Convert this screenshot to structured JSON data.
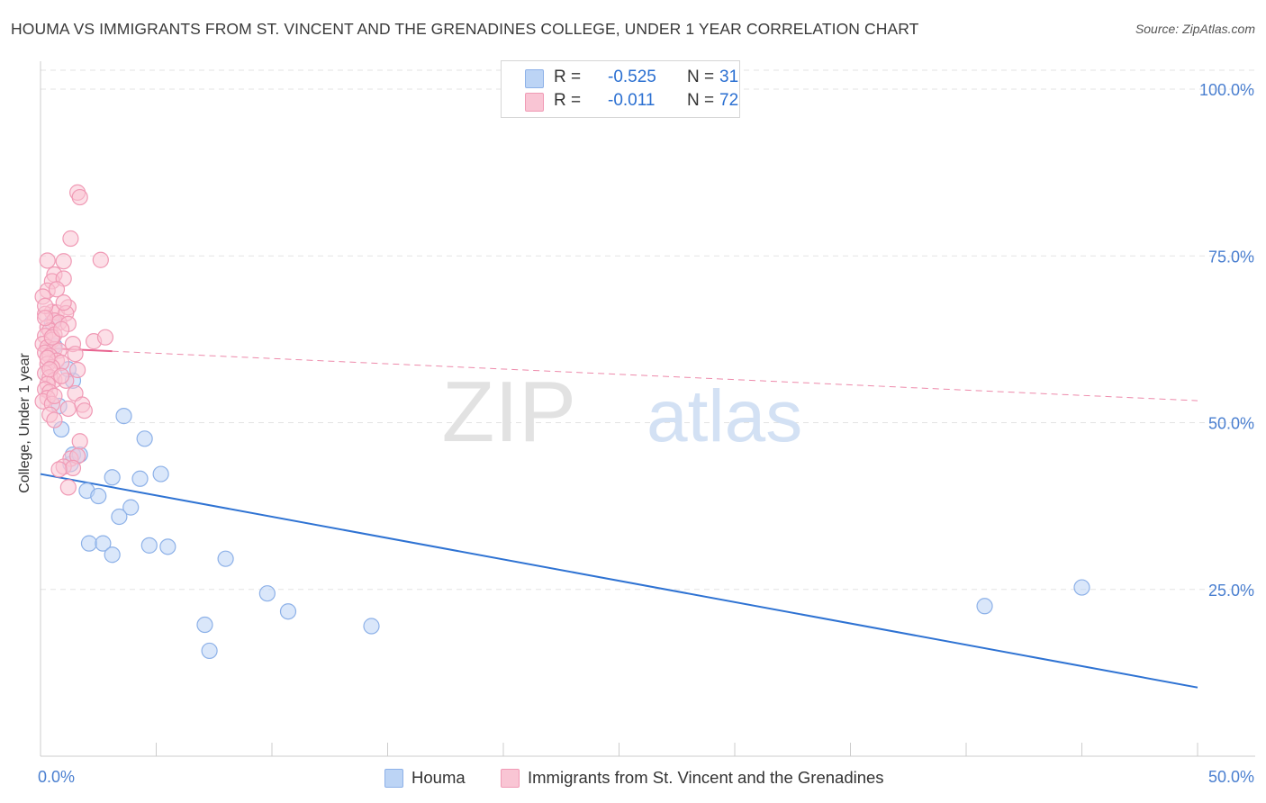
{
  "title": "HOUMA VS IMMIGRANTS FROM ST. VINCENT AND THE GRENADINES COLLEGE, UNDER 1 YEAR CORRELATION CHART",
  "source": "Source: ZipAtlas.com",
  "watermark": {
    "zip": "ZIP",
    "atlas": "atlas"
  },
  "legend": {
    "r_label": "R =",
    "n_label": "N =",
    "rows": [
      {
        "r": "-0.525",
        "n": "31",
        "swatch_fill": "#bcd4f5",
        "swatch_stroke": "#8db1e8"
      },
      {
        "r": "-0.011",
        "n": "72",
        "swatch_fill": "#f9c5d4",
        "swatch_stroke": "#f09ab5"
      }
    ]
  },
  "bottom_legend": [
    {
      "label": "Houma"
    },
    {
      "label": "Immigrants from St. Vincent and the Grenadines"
    }
  ],
  "chart_data": {
    "type": "scatter",
    "title": "HOUMA VS IMMIGRANTS FROM ST. VINCENT AND THE GRENADINES COLLEGE, UNDER 1 YEAR CORRELATION CHART",
    "xlabel": "",
    "ylabel": "College, Under 1 year",
    "xlim": [
      0,
      50
    ],
    "ylim": [
      0,
      105
    ],
    "x_tick_labels": [
      "0.0%",
      "50.0%"
    ],
    "x_tick_label_values": [
      0,
      50
    ],
    "x_minor_ticks": [
      0,
      5,
      10,
      15,
      20,
      25,
      30,
      35,
      40,
      45,
      50
    ],
    "y_ticks": [
      {
        "value": 25,
        "label": "25.0%"
      },
      {
        "value": 50,
        "label": "50.0%"
      },
      {
        "value": 75,
        "label": "75.0%"
      },
      {
        "value": 100,
        "label": "100.0%"
      }
    ],
    "grid": true,
    "series": [
      {
        "name": "Houma",
        "color": "#8db1e8",
        "fill": "#bcd4f5",
        "line_color": "#2f73d3",
        "trend": {
          "x0": 0,
          "y0": 42.3,
          "x1": 50,
          "y1": 10.3,
          "style": "solid"
        },
        "points": [
          [
            0.8,
            52.5
          ],
          [
            0.9,
            49.0
          ],
          [
            1.3,
            43.8
          ],
          [
            1.4,
            45.2
          ],
          [
            1.7,
            45.2
          ],
          [
            1.4,
            56.3
          ],
          [
            2.0,
            39.8
          ],
          [
            2.1,
            31.9
          ],
          [
            2.7,
            31.9
          ],
          [
            2.5,
            39.0
          ],
          [
            3.1,
            41.8
          ],
          [
            3.1,
            30.2
          ],
          [
            3.6,
            51.0
          ],
          [
            3.9,
            37.3
          ],
          [
            3.4,
            35.9
          ],
          [
            4.3,
            41.6
          ],
          [
            4.5,
            47.6
          ],
          [
            4.7,
            31.6
          ],
          [
            5.2,
            42.3
          ],
          [
            5.5,
            31.4
          ],
          [
            8.0,
            29.6
          ],
          [
            7.1,
            19.7
          ],
          [
            7.3,
            15.8
          ],
          [
            9.8,
            24.4
          ],
          [
            10.7,
            21.7
          ],
          [
            14.3,
            19.5
          ],
          [
            40.8,
            22.5
          ],
          [
            45.0,
            25.3
          ],
          [
            0.5,
            65.0
          ],
          [
            0.6,
            61.5
          ],
          [
            1.2,
            58.0
          ]
        ]
      },
      {
        "name": "Immigrants from St. Vincent and the Grenadines",
        "color": "#f09ab5",
        "fill": "#f9c5d4",
        "line_color": "#e8638f",
        "trend": {
          "x0": 0,
          "y0": 61.2,
          "x1": 50,
          "y1": 53.3,
          "solid_until": 3.1,
          "style": "solid-then-dashed"
        },
        "points": [
          [
            1.6,
            84.5
          ],
          [
            1.7,
            83.8
          ],
          [
            1.3,
            77.6
          ],
          [
            0.3,
            74.3
          ],
          [
            1.0,
            74.2
          ],
          [
            2.6,
            74.4
          ],
          [
            0.6,
            72.2
          ],
          [
            0.5,
            71.2
          ],
          [
            1.0,
            71.6
          ],
          [
            0.3,
            69.8
          ],
          [
            0.1,
            68.9
          ],
          [
            0.5,
            66.6
          ],
          [
            0.2,
            66.3
          ],
          [
            0.7,
            66.5
          ],
          [
            1.2,
            67.3
          ],
          [
            1.1,
            66.4
          ],
          [
            0.6,
            65.3
          ],
          [
            0.8,
            65.0
          ],
          [
            1.2,
            64.8
          ],
          [
            0.3,
            64.3
          ],
          [
            0.4,
            63.8
          ],
          [
            0.6,
            63.2
          ],
          [
            0.2,
            63.0
          ],
          [
            0.5,
            62.4
          ],
          [
            0.1,
            61.8
          ],
          [
            0.3,
            61.3
          ],
          [
            0.6,
            61.0
          ],
          [
            0.8,
            60.8
          ],
          [
            1.4,
            61.8
          ],
          [
            2.3,
            62.2
          ],
          [
            2.8,
            62.8
          ],
          [
            0.2,
            60.5
          ],
          [
            0.4,
            60.0
          ],
          [
            0.7,
            59.3
          ],
          [
            0.3,
            58.8
          ],
          [
            0.9,
            59.0
          ],
          [
            0.5,
            58.3
          ],
          [
            1.6,
            57.9
          ],
          [
            0.2,
            57.4
          ],
          [
            0.4,
            56.8
          ],
          [
            0.6,
            56.4
          ],
          [
            0.3,
            55.8
          ],
          [
            1.1,
            56.3
          ],
          [
            0.2,
            55.0
          ],
          [
            0.4,
            54.6
          ],
          [
            1.5,
            54.4
          ],
          [
            0.3,
            53.7
          ],
          [
            0.1,
            53.2
          ],
          [
            0.5,
            52.8
          ],
          [
            1.8,
            52.7
          ],
          [
            1.2,
            52.1
          ],
          [
            1.9,
            51.8
          ],
          [
            0.4,
            51.2
          ],
          [
            0.6,
            50.4
          ],
          [
            0.3,
            59.7
          ],
          [
            1.3,
            44.6
          ],
          [
            1.7,
            47.2
          ],
          [
            1.6,
            45.0
          ],
          [
            1.0,
            43.4
          ],
          [
            1.4,
            43.2
          ],
          [
            1.2,
            40.3
          ],
          [
            0.8,
            43.0
          ],
          [
            0.5,
            62.8
          ],
          [
            0.9,
            64.0
          ],
          [
            0.2,
            67.5
          ],
          [
            1.0,
            68.0
          ],
          [
            0.7,
            70.0
          ],
          [
            0.4,
            58.0
          ],
          [
            0.6,
            54.0
          ],
          [
            0.9,
            57.0
          ],
          [
            1.5,
            60.3
          ],
          [
            0.2,
            65.7
          ]
        ]
      }
    ]
  }
}
